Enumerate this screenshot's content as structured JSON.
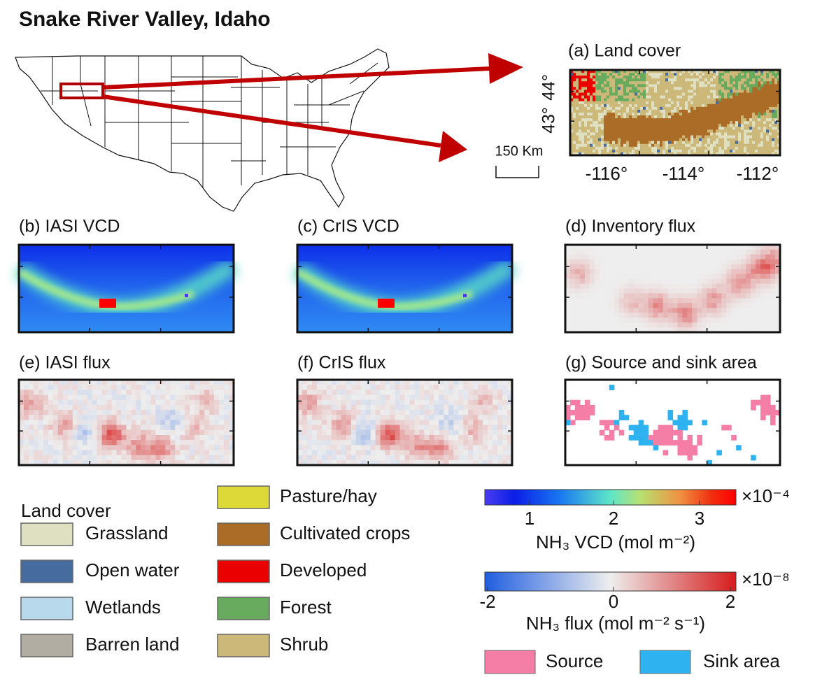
{
  "title": "Snake River Valley, Idaho",
  "panels": [
    {
      "label": "(a) Land cover"
    },
    {
      "label": "(b) IASI VCD"
    },
    {
      "label": "(c) CrIS VCD"
    },
    {
      "label": "(d) Inventory flux"
    },
    {
      "label": "(e) IASI flux"
    },
    {
      "label": "(f) CrIS flux"
    },
    {
      "label": "(g) Source and sink area"
    }
  ],
  "panel_a_axes": {
    "lat_labels": [
      "44°",
      "43°"
    ],
    "lon_labels": [
      "-116°",
      "-114°",
      "-112°"
    ],
    "scale_bar": "150 Km"
  },
  "land_cover_legend": {
    "title": "Land cover",
    "items": [
      {
        "name": "Grassland",
        "color": "#dfdfc2"
      },
      {
        "name": "Open water",
        "color": "#466b9e"
      },
      {
        "name": "Wetlands",
        "color": "#b8d8ec"
      },
      {
        "name": "Barren land",
        "color": "#b2ada3"
      },
      {
        "name": "Pasture/hay",
        "color": "#dcd939"
      },
      {
        "name": "Cultivated crops",
        "color": "#ab6c28"
      },
      {
        "name": "Developed",
        "color": "#eb0000"
      },
      {
        "name": "Forest",
        "color": "#68ab5f"
      },
      {
        "name": "Shrub",
        "color": "#ccb879"
      }
    ]
  },
  "vcd_colorbar": {
    "ticks": [
      "1",
      "2",
      "3"
    ],
    "multiplier": "×10⁻⁴",
    "label": "NH₃ VCD (mol m⁻²)"
  },
  "flux_colorbar": {
    "ticks": [
      "-2",
      "0",
      "2"
    ],
    "multiplier": "×10⁻⁸",
    "label": "NH₃ flux (mol m⁻² s⁻¹)"
  },
  "area_legend": [
    {
      "name": "Source",
      "color": "#f57ea6"
    },
    {
      "name": "Sink area",
      "color": "#2fb2f0"
    }
  ]
}
